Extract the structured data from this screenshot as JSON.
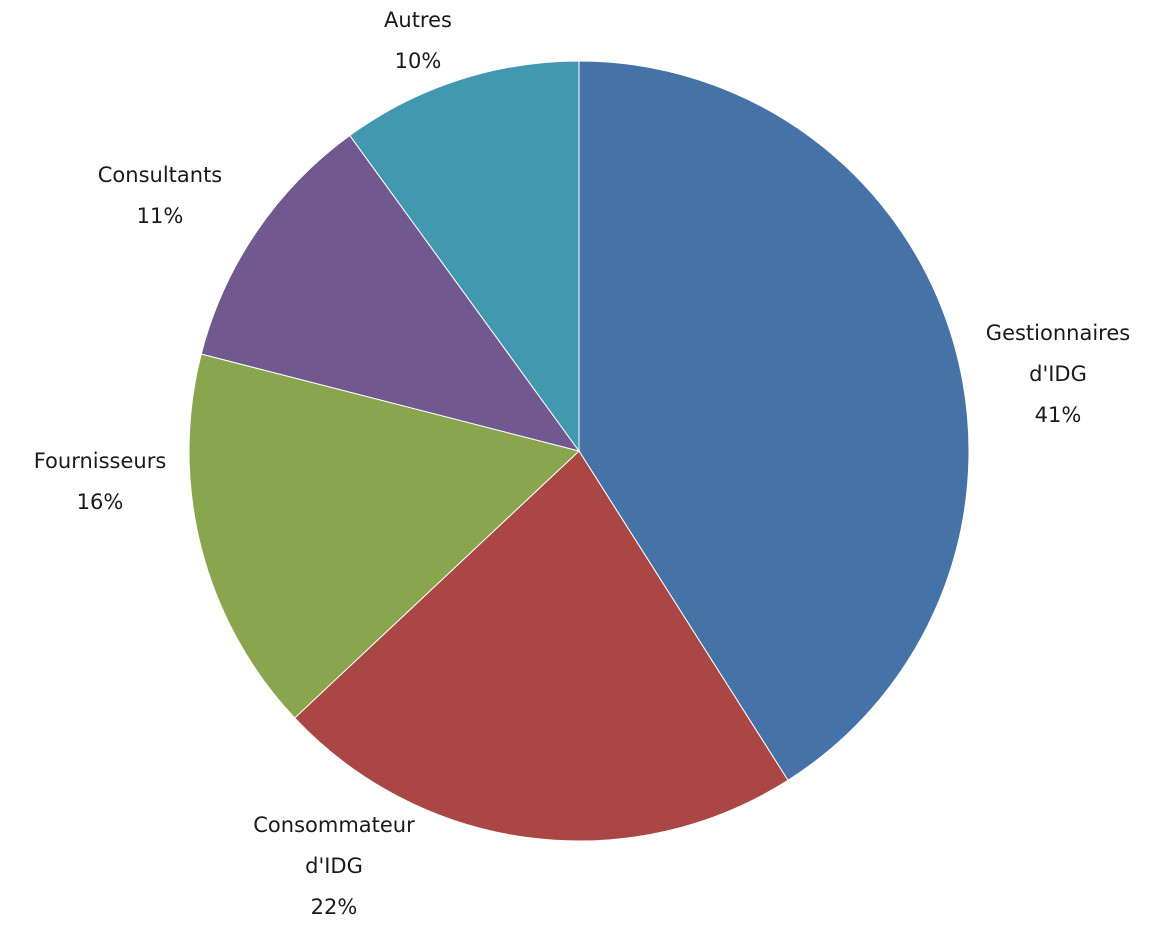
{
  "chart_data": {
    "type": "pie",
    "title": "",
    "slices": [
      {
        "category": "Gestionnaires d'IDG",
        "label_lines": [
          "Gestionnaires",
          "d'IDG"
        ],
        "value": 41,
        "percent_text": "41%",
        "color": "#4572A7"
      },
      {
        "category": "Consommateur d'IDG",
        "label_lines": [
          "Consommateur",
          "d'IDG"
        ],
        "value": 22,
        "percent_text": "22%",
        "color": "#AA4643"
      },
      {
        "category": "Fournisseurs",
        "label_lines": [
          "Fournisseurs"
        ],
        "value": 16,
        "percent_text": "16%",
        "color": "#89A54E"
      },
      {
        "category": "Consultants",
        "label_lines": [
          "Consultants"
        ],
        "value": 11,
        "percent_text": "11%",
        "color": "#71588F"
      },
      {
        "category": "Autres",
        "label_lines": [
          "Autres"
        ],
        "value": 10,
        "percent_text": "10%",
        "color": "#4198AF"
      }
    ],
    "start": "12 o'clock",
    "direction": "clockwise",
    "legend": "none",
    "data_labels": "outside, category and percent"
  }
}
